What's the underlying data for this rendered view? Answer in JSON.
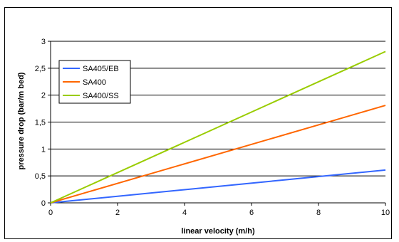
{
  "chart_data": {
    "type": "line",
    "xlabel": "linear velocity (m/h)",
    "ylabel": "pressure drop (bar/m bed)",
    "xlim": [
      0,
      10
    ],
    "ylim": [
      0,
      3
    ],
    "x_ticks": [
      "0",
      "2",
      "4",
      "6",
      "8",
      "10"
    ],
    "y_ticks": [
      "0",
      "0,5",
      "1",
      "1,5",
      "2",
      "2,5",
      "3"
    ],
    "grid": "horizontal",
    "legend_position": "top-left",
    "series": [
      {
        "name": "SA405/EB",
        "color": "#3366ff",
        "x": [
          0,
          10
        ],
        "y": [
          0,
          0.61
        ]
      },
      {
        "name": "SA400",
        "color": "#ff6600",
        "x": [
          0,
          10
        ],
        "y": [
          0,
          1.81
        ]
      },
      {
        "name": "SA400/SS",
        "color": "#99cc00",
        "x": [
          0,
          10
        ],
        "y": [
          0,
          2.81
        ]
      }
    ]
  }
}
